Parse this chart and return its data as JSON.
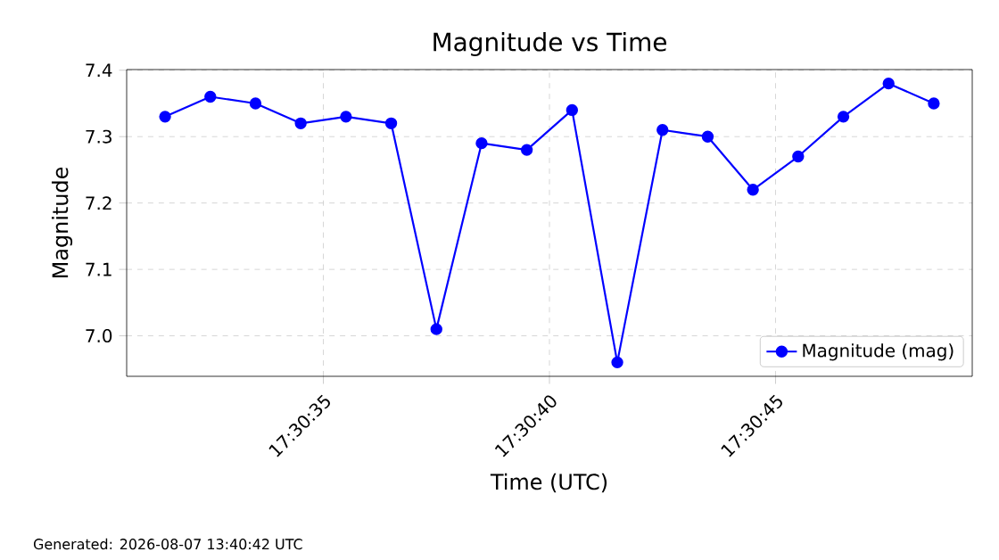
{
  "chart_data": {
    "type": "line",
    "title": "Magnitude vs Time",
    "xlabel": "Time (UTC)",
    "ylabel": "Magnitude",
    "annotations": [
      "Generated: 2026-08-07 13:40:42 UTC"
    ],
    "x": [
      17.50875,
      17.5090278,
      17.5093056,
      17.5095833,
      17.5098611,
      17.5101389,
      17.5104167,
      17.5106944,
      17.5109722,
      17.51125,
      17.5115278,
      17.5118056,
      17.5120833,
      17.5123611,
      17.5126389,
      17.5129167,
      17.5131944,
      17.5134722
    ],
    "series": [
      {
        "name": "Magnitude (mag)",
        "color": "#0000ff",
        "values": [
          7.33,
          7.36,
          7.35,
          7.32,
          7.33,
          7.32,
          7.01,
          7.29,
          7.28,
          7.34,
          6.96,
          7.31,
          7.3,
          7.22,
          7.27,
          7.33,
          7.38,
          7.35
        ]
      }
    ],
    "xlim": [
      17.5085139,
      17.5137083
    ],
    "xticks": [
      {
        "value": 17.5097222,
        "label": "17:30:35"
      },
      {
        "value": 17.5111111,
        "label": "17:30:40"
      },
      {
        "value": 17.5125,
        "label": "17:30:45"
      }
    ],
    "ylim": [
      6.939,
      7.401
    ],
    "yticks": [
      {
        "value": 7.0,
        "label": "7.0"
      },
      {
        "value": 7.1,
        "label": "7.1"
      },
      {
        "value": 7.2,
        "label": "7.2"
      },
      {
        "value": 7.3,
        "label": "7.3"
      },
      {
        "value": 7.4,
        "label": "7.4"
      }
    ],
    "grid": true,
    "legend": "bottom right",
    "marker": "circle",
    "line_style": "solid"
  }
}
